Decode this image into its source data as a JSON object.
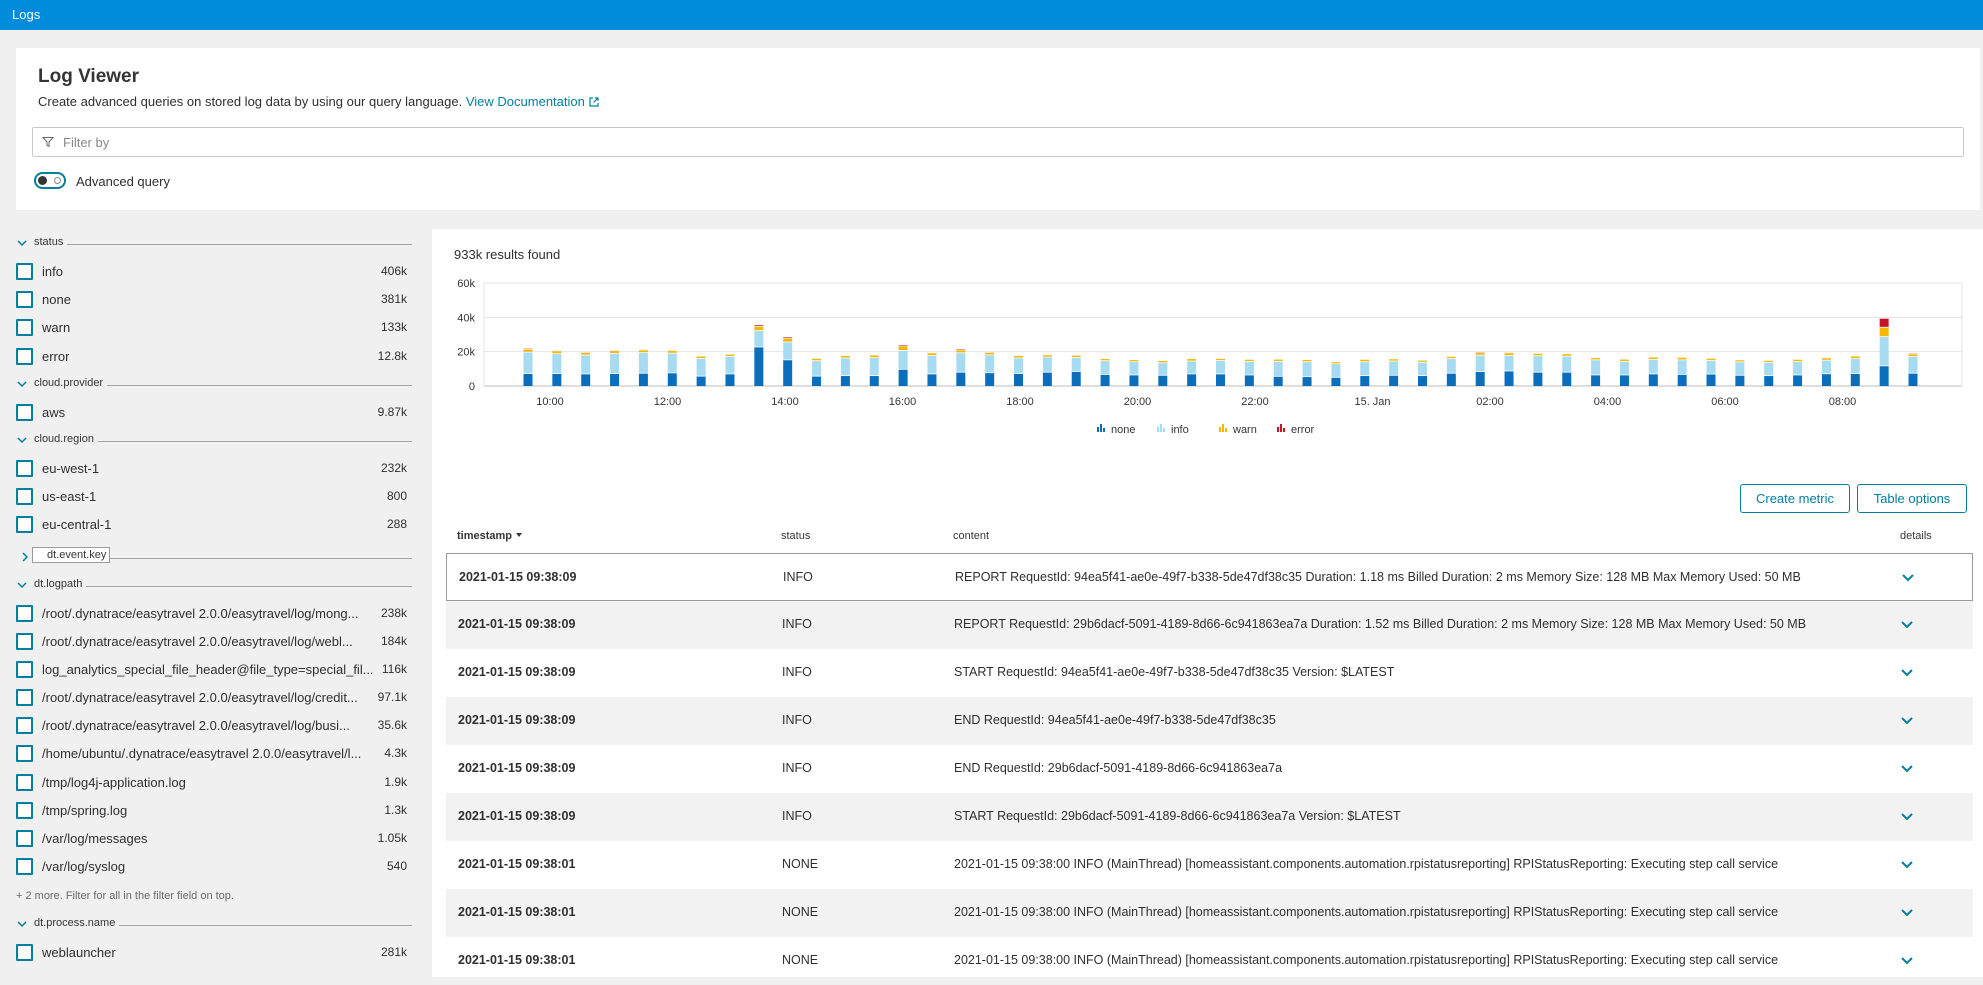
{
  "app": {
    "title": "Logs"
  },
  "header": {
    "title": "Log Viewer",
    "subtitle": "Create advanced queries on stored log data by using our query language.",
    "doc_link": "View Documentation",
    "filter_placeholder": "Filter by",
    "toggle_label": "Advanced query"
  },
  "sidebar": {
    "status_group": "status",
    "status": [
      {
        "label": "info",
        "count": "406k"
      },
      {
        "label": "none",
        "count": "381k"
      },
      {
        "label": "warn",
        "count": "133k"
      },
      {
        "label": "error",
        "count": "12.8k"
      }
    ],
    "provider_group": "cloud.provider",
    "provider": [
      {
        "label": "aws",
        "count": "9.87k"
      }
    ],
    "region_group": "cloud.region",
    "region": [
      {
        "label": "eu-west-1",
        "count": "232k"
      },
      {
        "label": "us-east-1",
        "count": "800"
      },
      {
        "label": "eu-central-1",
        "count": "288"
      }
    ],
    "eventkey_group": "dt.event.key",
    "logpath_group": "dt.logpath",
    "logpath": [
      {
        "label": "/root/.dynatrace/easytravel 2.0.0/easytravel/log/mong...",
        "count": "238k"
      },
      {
        "label": "/root/.dynatrace/easytravel 2.0.0/easytravel/log/webl...",
        "count": "184k"
      },
      {
        "label": "log_analytics_special_file_header@file_type=special_fil...",
        "count": "116k"
      },
      {
        "label": "/root/.dynatrace/easytravel 2.0.0/easytravel/log/credit...",
        "count": "97.1k"
      },
      {
        "label": "/root/.dynatrace/easytravel 2.0.0/easytravel/log/busi...",
        "count": "35.6k"
      },
      {
        "label": "/home/ubuntu/.dynatrace/easytravel 2.0.0/easytravel/l...",
        "count": "4.3k"
      },
      {
        "label": "/tmp/log4j-application.log",
        "count": "1.9k"
      },
      {
        "label": "/tmp/spring.log",
        "count": "1.3k"
      },
      {
        "label": "/var/log/messages",
        "count": "1.05k"
      },
      {
        "label": "/var/log/syslog",
        "count": "540"
      }
    ],
    "more_note": "+ 2 more. Filter for all in the filter field on top.",
    "process_group": "dt.process.name",
    "process": [
      {
        "label": "weblauncher",
        "count": "281k"
      }
    ]
  },
  "results": {
    "count_text": "933k results found",
    "create_metric": "Create metric",
    "table_options": "Table options",
    "columns": {
      "timestamp": "timestamp",
      "status": "status",
      "content": "content",
      "details": "details"
    },
    "rows": [
      {
        "ts": "2021-01-15 09:38:09",
        "status": "INFO",
        "content": "REPORT RequestId: 94ea5f41-ae0e-49f7-b338-5de47df38c35 Duration: 1.18 ms Billed Duration: 2 ms Memory Size: 128 MB Max Memory Used: 50 MB"
      },
      {
        "ts": "2021-01-15 09:38:09",
        "status": "INFO",
        "content": "REPORT RequestId: 29b6dacf-5091-4189-8d66-6c941863ea7a Duration: 1.52 ms Billed Duration: 2 ms Memory Size: 128 MB Max Memory Used: 50 MB"
      },
      {
        "ts": "2021-01-15 09:38:09",
        "status": "INFO",
        "content": "START RequestId: 94ea5f41-ae0e-49f7-b338-5de47df38c35 Version: $LATEST"
      },
      {
        "ts": "2021-01-15 09:38:09",
        "status": "INFO",
        "content": "END RequestId: 94ea5f41-ae0e-49f7-b338-5de47df38c35"
      },
      {
        "ts": "2021-01-15 09:38:09",
        "status": "INFO",
        "content": "END RequestId: 29b6dacf-5091-4189-8d66-6c941863ea7a"
      },
      {
        "ts": "2021-01-15 09:38:09",
        "status": "INFO",
        "content": "START RequestId: 29b6dacf-5091-4189-8d66-6c941863ea7a Version: $LATEST"
      },
      {
        "ts": "2021-01-15 09:38:01",
        "status": "NONE",
        "content": "2021-01-15 09:38:00 INFO (MainThread) [homeassistant.components.automation.rpistatusreporting] RPIStatusReporting: Executing step call service"
      },
      {
        "ts": "2021-01-15 09:38:01",
        "status": "NONE",
        "content": "2021-01-15 09:38:00 INFO (MainThread) [homeassistant.components.automation.rpistatusreporting] RPIStatusReporting: Executing step call service"
      },
      {
        "ts": "2021-01-15 09:38:01",
        "status": "NONE",
        "content": "2021-01-15 09:38:00 INFO (MainThread) [homeassistant.components.automation.rpistatusreporting] RPIStatusReporting: Executing step call service"
      }
    ]
  },
  "colors": {
    "none": "#0a6ebd",
    "info": "#a7dbf2",
    "warn": "#f5b800",
    "error": "#c41425",
    "accent": "#00809f",
    "topbar": "#008cdb"
  },
  "chart_data": {
    "type": "bar",
    "stacked": true,
    "ylim": [
      0,
      60000
    ],
    "y_ticks": [
      "0",
      "20k",
      "40k",
      "60k"
    ],
    "x_ticks": [
      "10:00",
      "12:00",
      "14:00",
      "16:00",
      "18:00",
      "20:00",
      "22:00",
      "15. Jan",
      "02:00",
      "04:00",
      "06:00",
      "08:00"
    ],
    "legend": [
      "none",
      "info",
      "warn",
      "error"
    ],
    "series": [
      {
        "name": "none",
        "values": [
          7000,
          7000,
          6800,
          7000,
          7200,
          7400,
          5500,
          6800,
          22500,
          15000,
          5500,
          5800,
          5800,
          9500,
          6800,
          7800,
          7500,
          7000,
          7800,
          8200,
          6500,
          6200,
          6000,
          6800,
          6800,
          6200,
          5400,
          5200,
          4800,
          5800,
          6000,
          5800,
          7200,
          8200,
          8500,
          7800,
          7800,
          6200,
          6200,
          6800,
          6500,
          6700,
          6000,
          5800,
          6200,
          6900,
          7000,
          11500,
          7200
        ],
        "info": []
      },
      {
        "name": "info",
        "values": [
          12500,
          11600,
          11000,
          11700,
          12000,
          11500,
          10300,
          10200,
          9500,
          10400,
          9000,
          10300,
          10500,
          11000,
          10700,
          11300,
          10400,
          9100,
          8800,
          8200,
          8000,
          7700,
          7300,
          7500,
          7800,
          7900,
          8700,
          8700,
          7900,
          8100,
          8300,
          7800,
          8500,
          9500,
          9000,
          9600,
          9300,
          8800,
          7900,
          8400,
          8500,
          7900,
          7800,
          7700,
          7800,
          7900,
          8700,
          17000,
          9700
        ]
      },
      {
        "name": "warn",
        "values": [
          1800,
          1600,
          1500,
          1700,
          1600,
          1600,
          1400,
          1300,
          2600,
          2300,
          1400,
          1400,
          1500,
          2600,
          1600,
          1700,
          1500,
          1400,
          1300,
          1300,
          1200,
          1200,
          1300,
          1400,
          1200,
          1200,
          1300,
          1300,
          1200,
          1400,
          1300,
          1200,
          1300,
          1500,
          1600,
          1400,
          1400,
          1300,
          1300,
          1400,
          1500,
          1300,
          1200,
          1200,
          1300,
          1400,
          1500,
          5500,
          1500
        ]
      },
      {
        "name": "error",
        "values": [
          600,
          500,
          500,
          500,
          500,
          500,
          400,
          400,
          900,
          800,
          400,
          400,
          400,
          800,
          400,
          700,
          400,
          400,
          400,
          400,
          300,
          300,
          400,
          400,
          300,
          300,
          300,
          300,
          300,
          300,
          300,
          300,
          300,
          600,
          500,
          400,
          400,
          300,
          300,
          300,
          400,
          300,
          300,
          300,
          300,
          400,
          400,
          5200,
          600
        ]
      }
    ]
  }
}
